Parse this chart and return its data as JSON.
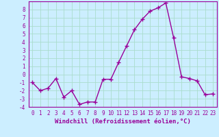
{
  "x": [
    0,
    1,
    2,
    3,
    4,
    5,
    6,
    7,
    8,
    9,
    10,
    11,
    12,
    13,
    14,
    15,
    16,
    17,
    18,
    19,
    20,
    21,
    22,
    23
  ],
  "y": [
    -1,
    -2,
    -1.7,
    -0.5,
    -2.8,
    -2,
    -3.7,
    -3.4,
    -3.4,
    -0.6,
    -0.6,
    1.5,
    3.5,
    5.5,
    6.8,
    7.8,
    8.2,
    8.8,
    4.5,
    -0.3,
    -0.5,
    -0.8,
    -2.5,
    -2.4
  ],
  "line_color": "#990099",
  "marker": "+",
  "marker_size": 4,
  "marker_linewidth": 1.0,
  "bg_color": "#cceeff",
  "grid_color": "#aaddcc",
  "xlabel": "Windchill (Refroidissement éolien,°C)",
  "ylim": [
    -4,
    9
  ],
  "xlim": [
    -0.5,
    23.5
  ],
  "yticks": [
    -4,
    -3,
    -2,
    -1,
    0,
    1,
    2,
    3,
    4,
    5,
    6,
    7,
    8
  ],
  "xticks": [
    0,
    1,
    2,
    3,
    4,
    5,
    6,
    7,
    8,
    9,
    10,
    11,
    12,
    13,
    14,
    15,
    16,
    17,
    18,
    19,
    20,
    21,
    22,
    23
  ],
  "label_fontsize": 6.5,
  "tick_fontsize": 5.5,
  "linewidth": 1.0
}
